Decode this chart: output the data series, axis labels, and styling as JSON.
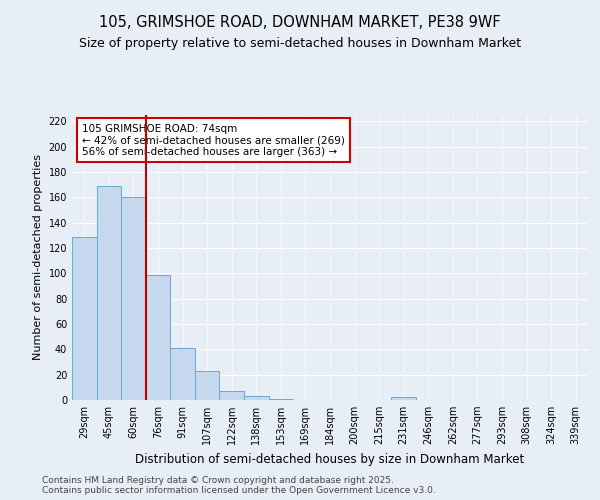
{
  "title1": "105, GRIMSHOE ROAD, DOWNHAM MARKET, PE38 9WF",
  "title2": "Size of property relative to semi-detached houses in Downham Market",
  "xlabel": "Distribution of semi-detached houses by size in Downham Market",
  "ylabel": "Number of semi-detached properties",
  "categories": [
    "29sqm",
    "45sqm",
    "60sqm",
    "76sqm",
    "91sqm",
    "107sqm",
    "122sqm",
    "138sqm",
    "153sqm",
    "169sqm",
    "184sqm",
    "200sqm",
    "215sqm",
    "231sqm",
    "246sqm",
    "262sqm",
    "277sqm",
    "293sqm",
    "308sqm",
    "324sqm",
    "339sqm"
  ],
  "values": [
    129,
    169,
    160,
    99,
    41,
    23,
    7,
    3,
    1,
    0,
    0,
    0,
    0,
    2,
    0,
    0,
    0,
    0,
    0,
    0,
    0
  ],
  "bar_color": "#c5d8ee",
  "bar_edge_color": "#6aaad4",
  "vline_color": "#c00000",
  "annotation_text": "105 GRIMSHOE ROAD: 74sqm\n← 42% of semi-detached houses are smaller (269)\n56% of semi-detached houses are larger (363) →",
  "annotation_box_color": "#ffffff",
  "annotation_box_edge": "#cc0000",
  "ylim": [
    0,
    225
  ],
  "yticks": [
    0,
    20,
    40,
    60,
    80,
    100,
    120,
    140,
    160,
    180,
    200,
    220
  ],
  "background_color": "#e8eef5",
  "plot_bg_color": "#e8eef5",
  "footer": "Contains HM Land Registry data © Crown copyright and database right 2025.\nContains public sector information licensed under the Open Government Licence v3.0.",
  "title1_fontsize": 10.5,
  "title2_fontsize": 9,
  "xlabel_fontsize": 8.5,
  "ylabel_fontsize": 8,
  "tick_fontsize": 7,
  "annotation_fontsize": 7.5,
  "footer_fontsize": 6.5
}
